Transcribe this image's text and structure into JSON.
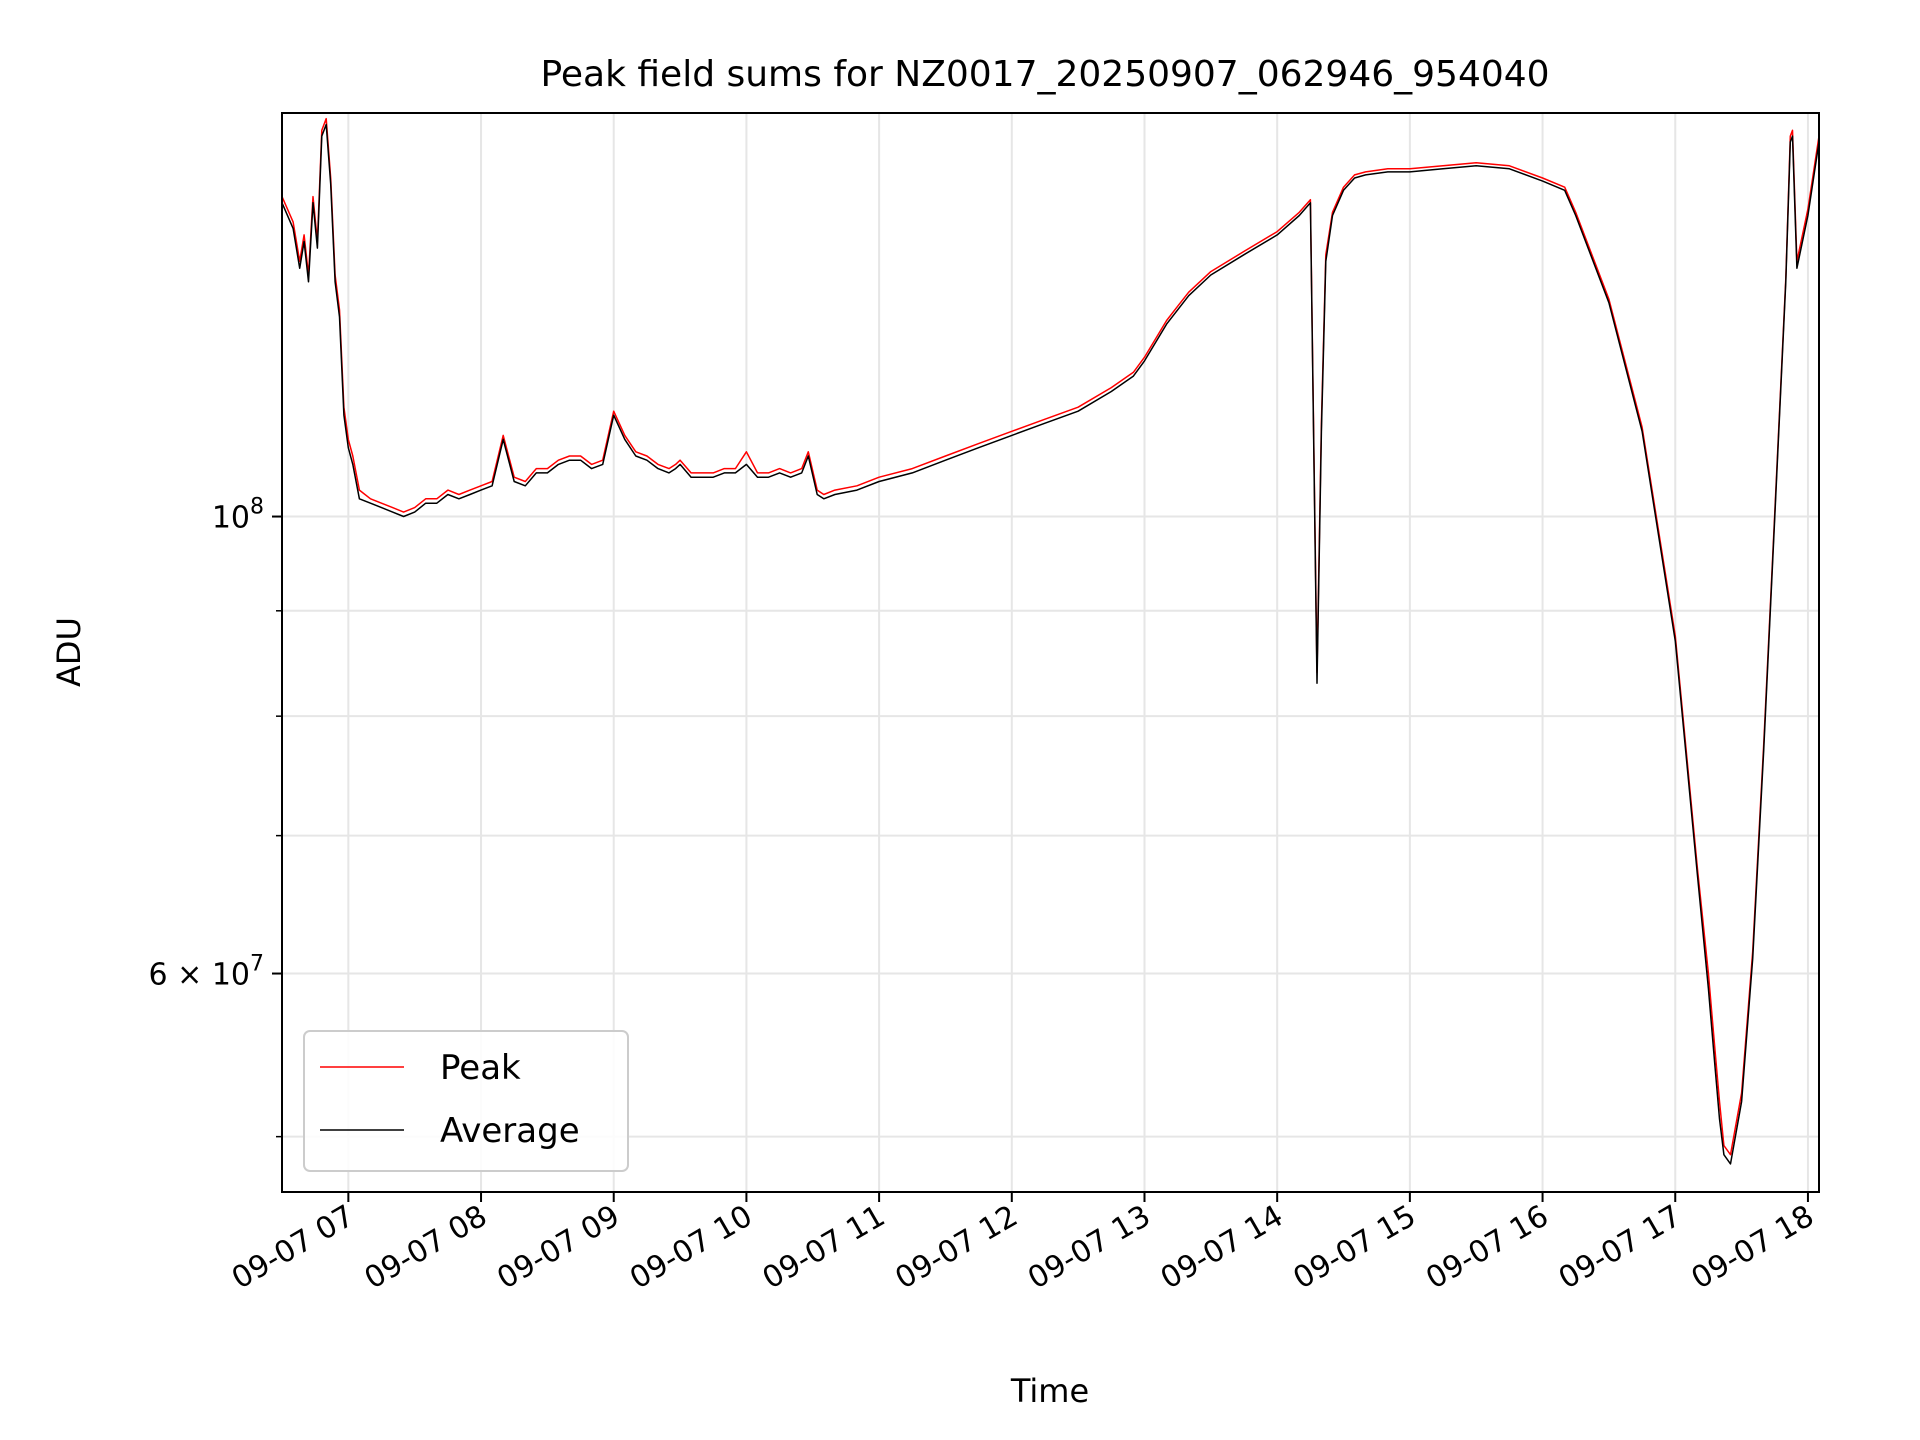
{
  "chart_data": {
    "type": "line",
    "title": "Peak field sums for NZ0017_20250907_062946_954040",
    "xlabel": "Time",
    "ylabel": "ADU",
    "yscale": "log",
    "ylim": [
      47000000,
      157000000
    ],
    "xlim": [
      "09-07 06:30",
      "09-07 18:05"
    ],
    "x_ticks": [
      "09-07 07",
      "09-07 08",
      "09-07 09",
      "09-07 10",
      "09-07 11",
      "09-07 12",
      "09-07 13",
      "09-07 14",
      "09-07 15",
      "09-07 16",
      "09-07 17",
      "09-07 18"
    ],
    "y_major_ticks": [
      {
        "value": 100000000,
        "base": "10",
        "exp": "8",
        "mult": ""
      },
      {
        "value": 60000000,
        "base": "10",
        "exp": "7",
        "mult": "6 × "
      }
    ],
    "y_minor_ticks": [
      50000000,
      70000000,
      80000000,
      90000000
    ],
    "grid": true,
    "legend": {
      "position": "lower-left",
      "entries": [
        "Peak",
        "Average"
      ]
    },
    "series": [
      {
        "name": "Average",
        "color": "#000000",
        "x": [
          "06:30",
          "06:35",
          "06:38",
          "06:40",
          "06:42",
          "06:44",
          "06:46",
          "06:48",
          "06:50",
          "06:52",
          "06:54",
          "06:56",
          "06:58",
          "07:00",
          "07:02",
          "07:05",
          "07:10",
          "07:15",
          "07:20",
          "07:25",
          "07:30",
          "07:35",
          "07:40",
          "07:45",
          "07:50",
          "07:55",
          "08:00",
          "08:05",
          "08:10",
          "08:15",
          "08:20",
          "08:25",
          "08:30",
          "08:35",
          "08:40",
          "08:45",
          "08:50",
          "08:55",
          "09:00",
          "09:05",
          "09:10",
          "09:15",
          "09:20",
          "09:25",
          "09:28",
          "09:30",
          "09:35",
          "09:40",
          "09:45",
          "09:50",
          "09:55",
          "10:00",
          "10:05",
          "10:10",
          "10:15",
          "10:20",
          "10:25",
          "10:28",
          "10:32",
          "10:35",
          "10:40",
          "10:50",
          "11:00",
          "11:15",
          "11:30",
          "11:45",
          "12:00",
          "12:15",
          "12:30",
          "12:45",
          "12:55",
          "13:00",
          "13:10",
          "13:15",
          "13:20",
          "13:30",
          "13:45",
          "14:00",
          "14:10",
          "14:15",
          "14:18",
          "14:20",
          "14:22",
          "14:25",
          "14:30",
          "14:35",
          "14:40",
          "14:50",
          "15:00",
          "15:15",
          "15:30",
          "15:45",
          "16:00",
          "16:10",
          "16:15",
          "16:30",
          "16:45",
          "17:00",
          "17:10",
          "17:15",
          "17:18",
          "17:20",
          "17:22",
          "17:25",
          "17:30",
          "17:35",
          "17:40",
          "17:45",
          "17:50",
          "17:52",
          "17:53",
          "17:55",
          "18:00",
          "18:05"
        ],
        "y": [
          142000000,
          138000000,
          132000000,
          136000000,
          130000000,
          142000000,
          135000000,
          153000000,
          155000000,
          145000000,
          130000000,
          125000000,
          112000000,
          108000000,
          106000000,
          102000000,
          101500000,
          101000000,
          100500000,
          100000000,
          100500000,
          101500000,
          101500000,
          102500000,
          102000000,
          102500000,
          103000000,
          103500000,
          109000000,
          104000000,
          103500000,
          105000000,
          105000000,
          106000000,
          106500000,
          106500000,
          105500000,
          106000000,
          112000000,
          109000000,
          107000000,
          106500000,
          105500000,
          105000000,
          105500000,
          106000000,
          104500000,
          104500000,
          104500000,
          105000000,
          105000000,
          106000000,
          104500000,
          104500000,
          105000000,
          104500000,
          105000000,
          107000000,
          102500000,
          102000000,
          102500000,
          103000000,
          104000000,
          105000000,
          106500000,
          108000000,
          109500000,
          111000000,
          112500000,
          115000000,
          117000000,
          119000000,
          124000000,
          126000000,
          128000000,
          131000000,
          134000000,
          137000000,
          140000000,
          142000000,
          83000000,
          110000000,
          133000000,
          140000000,
          144000000,
          146000000,
          146500000,
          147000000,
          147000000,
          147500000,
          148000000,
          147500000,
          145500000,
          144000000,
          140000000,
          127000000,
          110000000,
          87000000,
          67000000,
          59000000,
          54000000,
          51000000,
          49000000,
          48500000,
          52000000,
          61000000,
          77000000,
          100000000,
          130000000,
          152000000,
          153000000,
          132000000,
          140000000,
          152000000
        ]
      },
      {
        "name": "Peak",
        "color": "#ff0000",
        "x": [
          "06:30",
          "06:35",
          "06:38",
          "06:40",
          "06:42",
          "06:44",
          "06:46",
          "06:48",
          "06:50",
          "06:52",
          "06:54",
          "06:56",
          "06:58",
          "07:00",
          "07:02",
          "07:05",
          "07:10",
          "07:15",
          "07:20",
          "07:25",
          "07:30",
          "07:35",
          "07:40",
          "07:45",
          "07:50",
          "07:55",
          "08:00",
          "08:05",
          "08:10",
          "08:15",
          "08:20",
          "08:25",
          "08:30",
          "08:35",
          "08:40",
          "08:45",
          "08:50",
          "08:55",
          "09:00",
          "09:05",
          "09:10",
          "09:15",
          "09:20",
          "09:25",
          "09:28",
          "09:30",
          "09:35",
          "09:40",
          "09:45",
          "09:50",
          "09:55",
          "10:00",
          "10:05",
          "10:10",
          "10:15",
          "10:20",
          "10:25",
          "10:28",
          "10:32",
          "10:35",
          "10:40",
          "10:50",
          "11:00",
          "11:15",
          "11:30",
          "11:45",
          "12:00",
          "12:15",
          "12:30",
          "12:45",
          "12:55",
          "13:00",
          "13:10",
          "13:15",
          "13:20",
          "13:30",
          "13:45",
          "14:00",
          "14:10",
          "14:15",
          "14:18",
          "14:20",
          "14:22",
          "14:25",
          "14:30",
          "14:35",
          "14:40",
          "14:50",
          "15:00",
          "15:15",
          "15:30",
          "15:45",
          "16:00",
          "16:10",
          "16:15",
          "16:30",
          "16:45",
          "17:00",
          "17:10",
          "17:15",
          "17:18",
          "17:20",
          "17:22",
          "17:25",
          "17:30",
          "17:35",
          "17:40",
          "17:45",
          "17:50",
          "17:52",
          "17:53",
          "17:55",
          "18:00",
          "18:05"
        ],
        "y": [
          143000000,
          139000000,
          133000000,
          137000000,
          131000000,
          143000000,
          136000000,
          154000000,
          156000000,
          146000000,
          131000000,
          126000000,
          113000000,
          109000000,
          107000000,
          103000000,
          102000000,
          101500000,
          101000000,
          100500000,
          101000000,
          102000000,
          102000000,
          103000000,
          102500000,
          103000000,
          103500000,
          104000000,
          109500000,
          104500000,
          104000000,
          105500000,
          105500000,
          106500000,
          107000000,
          107000000,
          106000000,
          106500000,
          112500000,
          109500000,
          107500000,
          107000000,
          106000000,
          105500000,
          106000000,
          106500000,
          105000000,
          105000000,
          105000000,
          105500000,
          105500000,
          107500000,
          105000000,
          105000000,
          105500000,
          105000000,
          105500000,
          107500000,
          103000000,
          102500000,
          103000000,
          103500000,
          104500000,
          105500000,
          107000000,
          108500000,
          110000000,
          111500000,
          113000000,
          115500000,
          117500000,
          119500000,
          124500000,
          126500000,
          128500000,
          131500000,
          134500000,
          137500000,
          140500000,
          142500000,
          84000000,
          111000000,
          134000000,
          140500000,
          144500000,
          146500000,
          147000000,
          147500000,
          147500000,
          148000000,
          148500000,
          148000000,
          146000000,
          144500000,
          140500000,
          127500000,
          110500000,
          87500000,
          67500000,
          60000000,
          55000000,
          52000000,
          49500000,
          49000000,
          52500000,
          61500000,
          77500000,
          100500000,
          130500000,
          153000000,
          154000000,
          133000000,
          141000000,
          153000000
        ]
      }
    ]
  }
}
